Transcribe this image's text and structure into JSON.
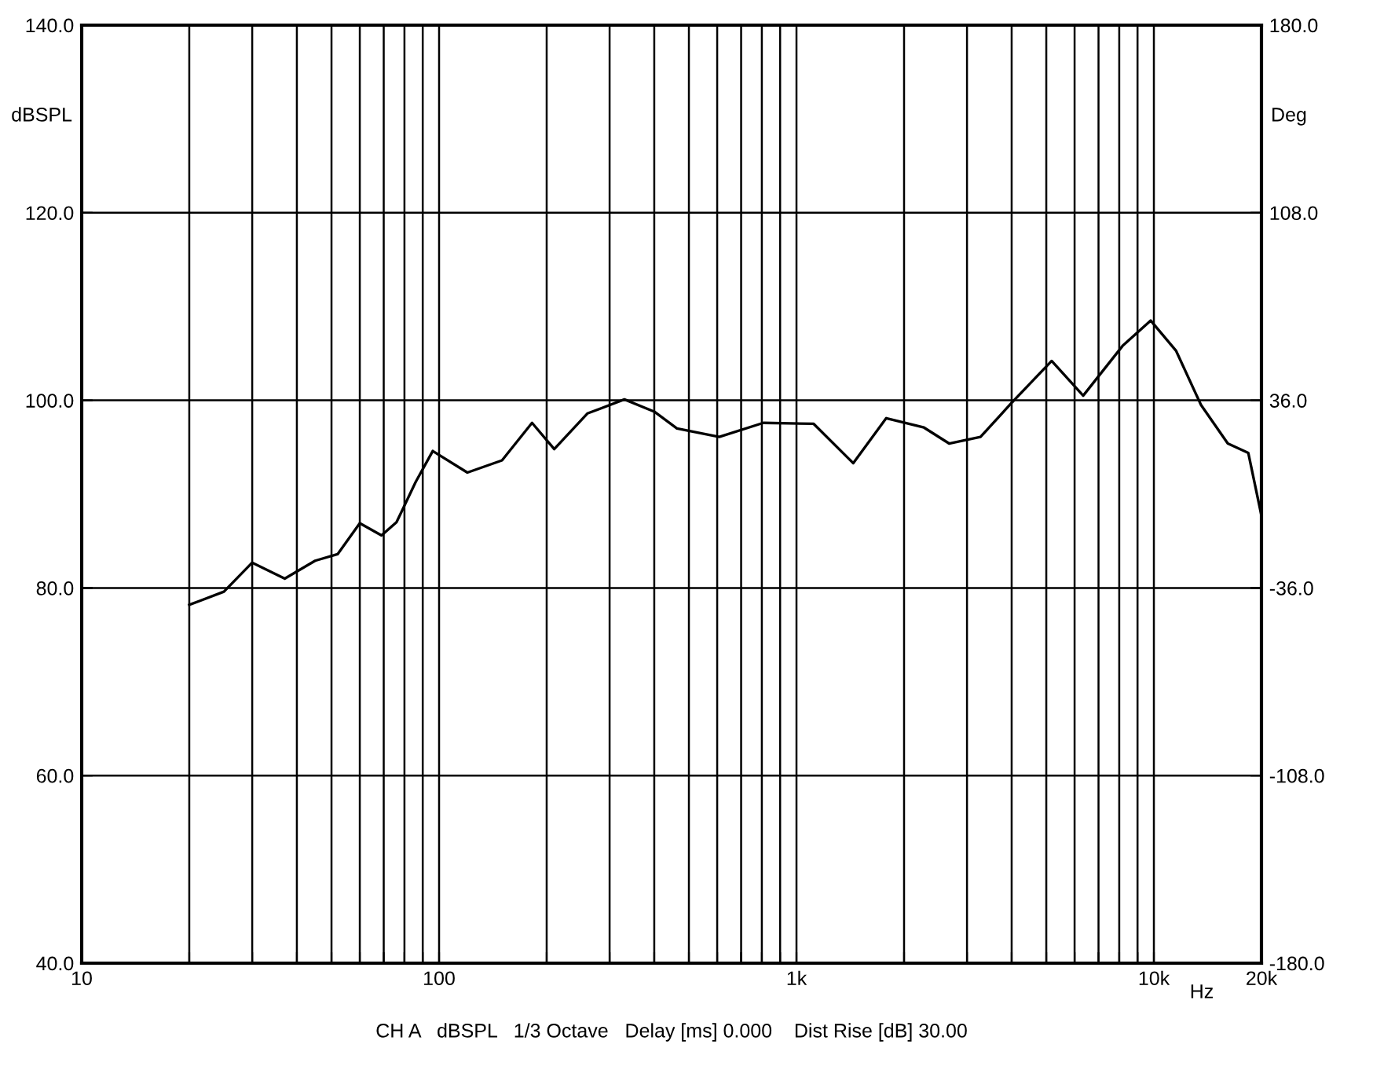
{
  "chart_data": {
    "type": "line",
    "log": "x",
    "xlabel": "Hz",
    "ylabel": "dBSPL",
    "y2label": "Deg",
    "annotations": [
      "CH A   dBSPL   1/3 Octave   Delay [ms] 0.000    Dist Rise [dB] 30.00"
    ],
    "x": [
      20,
      25,
      30,
      37,
      45,
      52,
      60,
      69,
      76,
      86,
      96,
      120,
      150,
      182,
      210,
      260,
      330,
      400,
      463,
      608,
      808,
      1117,
      1442,
      1783,
      2274,
      2673,
      3273,
      4014,
      5176,
      6342,
      8171,
      9800,
      11530,
      13550,
      16100,
      18370,
      20000
    ],
    "series": [
      {
        "color": "#000000",
        "values": [
          78.2,
          79.6,
          82.7,
          81.0,
          82.9,
          83.6,
          86.9,
          85.6,
          87.0,
          91.3,
          94.6,
          92.3,
          93.6,
          97.6,
          94.8,
          98.6,
          100.1,
          98.8,
          97.0,
          96.1,
          97.6,
          97.5,
          93.3,
          98.1,
          97.1,
          95.4,
          96.1,
          99.8,
          104.2,
          100.5,
          105.8,
          108.5,
          105.3,
          99.5,
          95.4,
          94.4,
          87.7
        ]
      }
    ],
    "xlim": [
      10,
      20000
    ],
    "xticks": [
      10,
      {
        "value": 20,
        "label": null
      },
      {
        "value": 30,
        "label": null
      },
      {
        "value": 40,
        "label": null
      },
      {
        "value": 50,
        "label": null
      },
      {
        "value": 60,
        "label": null
      },
      {
        "value": 70,
        "label": null
      },
      {
        "value": 80,
        "label": null
      },
      {
        "value": 90,
        "label": null
      },
      100,
      {
        "value": 200,
        "label": null
      },
      {
        "value": 300,
        "label": null
      },
      {
        "value": 400,
        "label": null
      },
      {
        "value": 500,
        "label": null
      },
      {
        "value": 600,
        "label": null
      },
      {
        "value": 700,
        "label": null
      },
      {
        "value": 800,
        "label": null
      },
      {
        "value": 900,
        "label": null
      },
      {
        "value": 1000,
        "label": "1k"
      },
      {
        "value": 2000,
        "label": null
      },
      {
        "value": 3000,
        "label": null
      },
      {
        "value": 4000,
        "label": null
      },
      {
        "value": 5000,
        "label": null
      },
      {
        "value": 6000,
        "label": null
      },
      {
        "value": 7000,
        "label": null
      },
      {
        "value": 8000,
        "label": null
      },
      {
        "value": 9000,
        "label": null
      },
      {
        "value": 10000,
        "label": "10k"
      },
      {
        "value": 20000,
        "label": "20k"
      }
    ],
    "ylim": [
      40,
      140
    ],
    "yticks": [
      {
        "value": 40,
        "label": "40.0"
      },
      {
        "value": 60,
        "label": "60.0"
      },
      {
        "value": 80,
        "label": "80.0"
      },
      {
        "value": 100,
        "label": "100.0"
      },
      {
        "value": 120,
        "label": "120.0"
      },
      {
        "value": 140,
        "label": "140.0"
      }
    ],
    "y2lim": [
      -180,
      180
    ],
    "y2ticks": [
      {
        "value": -180,
        "label": "-180.0"
      },
      {
        "value": -108,
        "label": "-108.0"
      },
      {
        "value": -36,
        "label": "-36.0"
      },
      {
        "value": 36,
        "label": "36.0"
      },
      {
        "value": 108,
        "label": "108.0"
      },
      {
        "value": 180,
        "label": "180.0"
      }
    ],
    "grid": true,
    "legend": false,
    "marker": "none",
    "line_style": "solid"
  }
}
